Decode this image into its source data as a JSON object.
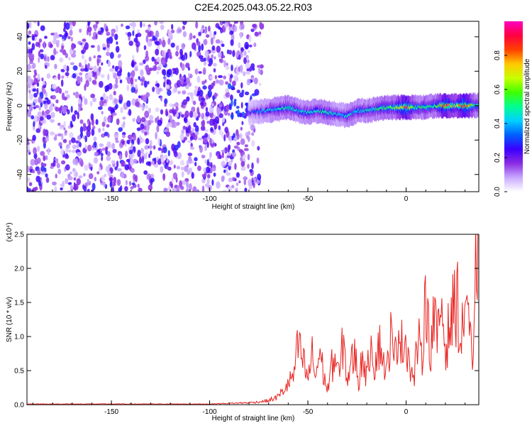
{
  "title": "C2E4.2025.043.05.22.R03",
  "chart_data": [
    {
      "type": "heatmap",
      "xlabel": "Height of straight line (km)",
      "ylabel": "Frequency (Hz)",
      "xlim": [
        -193,
        37
      ],
      "ylim": [
        -50,
        49
      ],
      "x_ticks": [
        -150,
        -100,
        -50,
        0
      ],
      "y_ticks": [
        40,
        20,
        0,
        -20,
        -40
      ],
      "colorbar": {
        "label": "Normalized spectral amplitude",
        "range": [
          0,
          1
        ],
        "ticks": [
          "0.0",
          "0.2",
          "0.4",
          "0.6",
          "0.8"
        ],
        "colormap": [
          "#ffffff",
          "#c8a8ff",
          "#8a2be2",
          "#3a00ff",
          "#0060ff",
          "#00d0ff",
          "#00ff90",
          "#40ff00",
          "#c8ff00",
          "#ffc800",
          "#ff4000",
          "#ff0040",
          "#ff00c0"
        ]
      },
      "regions": [
        {
          "height_range": [
            -193,
            -73
          ],
          "frequency_range": [
            -50,
            49
          ],
          "amplitude": "scattered noise, ~0.05–0.25"
        },
        {
          "height_range": [
            -73,
            37
          ],
          "frequency_center": 0,
          "frequency_halfwidth": 5,
          "amplitude": "0.3–1.0 along 0 Hz"
        }
      ],
      "ridge": {
        "x": [
          -80,
          -72,
          -65,
          -60,
          -55,
          -50,
          -45,
          -40,
          -35,
          -30,
          -25,
          -20,
          -15,
          -10,
          -5,
          0,
          5,
          10,
          15,
          20,
          25,
          30,
          35
        ],
        "frequency": [
          -4,
          -3,
          -2,
          -1,
          -3,
          -4,
          -3,
          -4,
          -5,
          -6,
          -3,
          -3,
          -2,
          -1,
          -1,
          -1,
          -1,
          -1,
          0,
          0,
          0,
          0,
          0
        ],
        "peak_amplitude": [
          0.25,
          0.4,
          0.45,
          0.5,
          0.45,
          0.45,
          0.45,
          0.5,
          0.4,
          0.45,
          0.45,
          0.45,
          0.5,
          0.55,
          0.6,
          0.9,
          0.5,
          0.55,
          0.5,
          0.9,
          0.6,
          0.95,
          0.5
        ]
      }
    },
    {
      "type": "line",
      "xlabel": "Height of straight line (km)",
      "ylabel": "SNR (10 * v/v)",
      "y_multiplier": "(x10⁴)",
      "xlim": [
        -193,
        37
      ],
      "ylim": [
        0,
        2.5
      ],
      "x_ticks": [
        -150,
        -100,
        -50,
        0
      ],
      "y_ticks": [
        "0.0",
        "0.5",
        "1.0",
        "1.5",
        "2.0",
        "2.5"
      ],
      "series": [
        {
          "color": "#e8221f",
          "x": [
            -193,
            -170,
            -150,
            -130,
            -110,
            -100,
            -90,
            -80,
            -75,
            -70,
            -65,
            -60,
            -57,
            -55,
            -52,
            -50,
            -48,
            -46,
            -44,
            -42,
            -40,
            -38,
            -36,
            -34,
            -32,
            -30,
            -28,
            -26,
            -24,
            -22,
            -20,
            -18,
            -16,
            -14,
            -12,
            -10,
            -8,
            -6,
            -4,
            -2,
            0,
            2,
            4,
            6,
            8,
            10,
            12,
            14,
            16,
            18,
            20,
            22,
            24,
            26,
            28,
            30,
            32,
            34,
            36,
            37
          ],
          "y": [
            0.01,
            0.01,
            0.01,
            0.01,
            0.01,
            0.01,
            0.02,
            0.03,
            0.04,
            0.06,
            0.12,
            0.3,
            0.45,
            0.86,
            0.6,
            0.35,
            0.75,
            0.4,
            0.8,
            0.45,
            0.2,
            0.55,
            0.7,
            0.4,
            0.95,
            0.35,
            0.6,
            0.75,
            0.3,
            0.8,
            0.35,
            1.05,
            0.55,
            0.9,
            0.75,
            0.4,
            1.05,
            0.6,
            1.2,
            0.85,
            1.0,
            0.55,
            0.35,
            1.0,
            0.6,
            1.9,
            0.7,
            1.3,
            0.9,
            1.55,
            0.8,
            1.15,
            1.35,
            1.6,
            0.75,
            1.7,
            1.35,
            0.3,
            2.5,
            1.6
          ]
        }
      ]
    }
  ]
}
